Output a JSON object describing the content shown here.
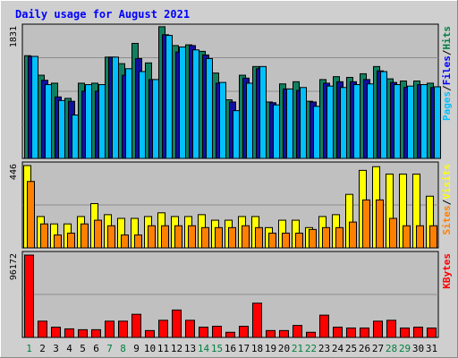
{
  "chart_data": {
    "type": "bar",
    "title": "Daily usage for August 2021",
    "days": [
      "1",
      "2",
      "3",
      "4",
      "5",
      "6",
      "7",
      "8",
      "9",
      "10",
      "11",
      "12",
      "13",
      "14",
      "15",
      "16",
      "17",
      "18",
      "19",
      "20",
      "21",
      "22",
      "23",
      "24",
      "25",
      "26",
      "27",
      "28",
      "29",
      "30",
      "31"
    ],
    "weekend_days": [
      "1",
      "7",
      "8",
      "14",
      "15",
      "21",
      "22",
      "28",
      "29"
    ],
    "panels": [
      {
        "name": "hits-files-pages",
        "ymax_label": "1831",
        "ymax": 1831,
        "legend": [
          {
            "label": "Pages",
            "color": "#00c0ff"
          },
          {
            "label": "/",
            "color": "#000000"
          },
          {
            "label": "Files",
            "color": "#0000ff"
          },
          {
            "label": "/",
            "color": "#000000"
          },
          {
            "label": "Hits",
            "color": "#008040"
          }
        ],
        "series": [
          {
            "name": "Hits",
            "color": "#128060",
            "values": [
              1420,
              1150,
              1040,
              830,
              1040,
              1040,
              1400,
              1310,
              1590,
              1320,
              1820,
              1560,
              1570,
              1480,
              1180,
              810,
              1150,
              1270,
              780,
              1030,
              1060,
              790,
              1090,
              1130,
              1120,
              1170,
              1270,
              1100,
              1070,
              1070,
              1040
            ]
          },
          {
            "name": "Files",
            "color": "#1010a0",
            "values": [
              1410,
              1080,
              850,
              790,
              930,
              930,
              1400,
              1150,
              1380,
              1090,
              1710,
              1470,
              1560,
              1430,
              1040,
              780,
              1110,
              1240,
              770,
              960,
              940,
              780,
              1040,
              1060,
              1060,
              1090,
              1210,
              1050,
              980,
              1020,
              980
            ]
          },
          {
            "name": "Pages",
            "color": "#00c0ff",
            "values": [
              1410,
              1020,
              800,
              600,
              1020,
              1020,
              1400,
              1240,
              1200,
              1090,
              1700,
              1540,
              1500,
              1380,
              1050,
              660,
              1040,
              1270,
              740,
              960,
              980,
              720,
              1000,
              980,
              1020,
              1030,
              1200,
              1020,
              1000,
              1020,
              990
            ]
          }
        ]
      },
      {
        "name": "visits-sites",
        "ymax_label": "446",
        "ymax": 446,
        "legend": [
          {
            "label": "Sites",
            "color": "#ff8000"
          },
          {
            "label": "/",
            "color": "#000000"
          },
          {
            "label": "Visits",
            "color": "#ffff00"
          }
        ],
        "series": [
          {
            "name": "Visits",
            "color": "#ffff00",
            "values": [
              446,
              170,
              130,
              130,
              170,
              240,
              180,
              160,
              160,
              170,
              190,
              170,
              170,
              180,
              150,
              150,
              170,
              170,
              110,
              150,
              150,
              110,
              170,
              180,
              290,
              420,
              440,
              400,
              400,
              400,
              280
            ]
          },
          {
            "name": "Sites",
            "color": "#ff8000",
            "values": [
              360,
              130,
              70,
              80,
              130,
              150,
              120,
              70,
              70,
              120,
              120,
              120,
              120,
              110,
              110,
              110,
              120,
              110,
              80,
              80,
              80,
              100,
              110,
              110,
              140,
              260,
              260,
              160,
              120,
              120,
              120
            ]
          }
        ]
      },
      {
        "name": "kbytes",
        "ymax_label": "96172",
        "ymax": 96172,
        "legend": [
          {
            "label": "KBytes",
            "color": "#ff0000"
          }
        ],
        "series": [
          {
            "name": "KBytes",
            "color": "#ff0000",
            "values": [
              96172,
              19000,
              12000,
              10000,
              9000,
              9000,
              19000,
              19000,
              27000,
              8000,
              20000,
              32000,
              20000,
              12000,
              13000,
              6000,
              13000,
              40000,
              8000,
              8000,
              14000,
              6000,
              26000,
              12000,
              11000,
              11000,
              19000,
              20000,
              11000,
              12000,
              11000
            ]
          }
        ]
      }
    ]
  }
}
